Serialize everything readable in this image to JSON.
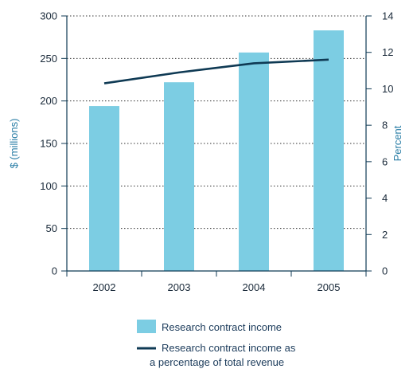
{
  "chart_data": {
    "type": "bar",
    "title": "",
    "categories": [
      "2002",
      "2003",
      "2004",
      "2005"
    ],
    "series": [
      {
        "name": "Research contract income",
        "kind": "bar",
        "axis": "left",
        "color": "#7ccde3",
        "values": [
          194,
          222,
          257,
          283
        ]
      },
      {
        "name": "Research contract income as a percentage of total revenue",
        "name_lines": [
          "Research contract income as",
          "a percentage of total revenue"
        ],
        "kind": "line",
        "axis": "right",
        "color": "#0f3a54",
        "values": [
          10.3,
          10.9,
          11.4,
          11.6
        ]
      }
    ],
    "ylabel": "$ (millions)",
    "ylim": [
      0,
      300
    ],
    "yticks": [
      0,
      50,
      100,
      150,
      200,
      250,
      300
    ],
    "y2label": "Percent",
    "y2lim": [
      0,
      14
    ],
    "y2ticks": [
      0,
      2,
      4,
      6,
      8,
      10,
      12,
      14
    ],
    "grid": true,
    "legend_position": "bottom"
  }
}
